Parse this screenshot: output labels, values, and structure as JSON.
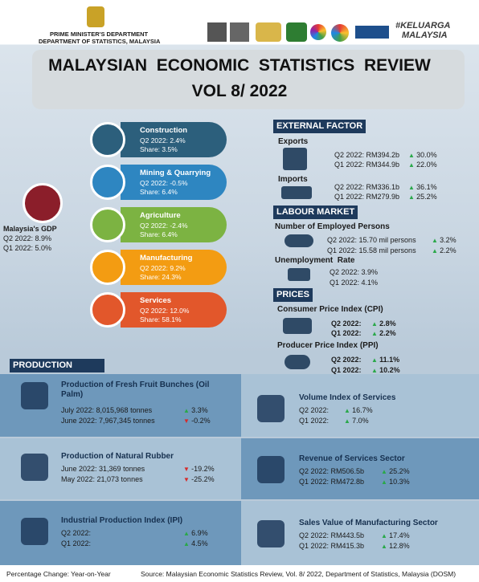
{
  "header": {
    "department": [
      "PRIME MINISTER'S DEPARTMENT",
      "DEPARTMENT OF STATISTICS, MALAYSIA"
    ],
    "hashtag": [
      "#KELUARGA",
      "MALAYSIA"
    ],
    "title": [
      "MALAYSIAN  ECONOMIC  STATISTICS  REVIEW",
      "VOL 8/ 2022"
    ]
  },
  "gdp": {
    "label": "Malaysia's GDP",
    "rows": [
      "Q2 2022: 8.9%",
      "Q1 2022: 5.0%"
    ]
  },
  "sectors": [
    {
      "name": "Construction",
      "change": "Q2 2022: 2.4%",
      "share": "Share: 3.5%"
    },
    {
      "name": "Mining & Quarrying",
      "change": "Q2 2022: -0.5%",
      "share": "Share: 6.4%"
    },
    {
      "name": "Agriculture",
      "change": "Q2 2022: -2.4%",
      "share": "Share: 6.4%"
    },
    {
      "name": "Manufacturing",
      "change": "Q2 2022: 9.2%",
      "share": "Share: 24.3%"
    },
    {
      "name": "Services",
      "change": "Q2 2022: 12.0%",
      "share": "Share: 58.1%"
    }
  ],
  "external": {
    "title": "EXTERNAL FACTOR",
    "groups": [
      {
        "name": "Exports",
        "rows": [
          {
            "text": "Q2 2022: RM394.2b",
            "change": "30.0%"
          },
          {
            "text": "Q1 2022: RM344.9b",
            "change": "22.0%"
          }
        ]
      },
      {
        "name": "Imports",
        "rows": [
          {
            "text": "Q2 2022: RM336.1b",
            "change": "36.1%"
          },
          {
            "text": "Q1 2022: RM279.9b",
            "change": "25.2%"
          }
        ]
      }
    ]
  },
  "labour": {
    "title": "LABOUR MARKET",
    "employed": {
      "name": "Number of Employed Persons",
      "rows": [
        {
          "text": "Q2 2022: 15.70 mil persons",
          "change": "3.2%"
        },
        {
          "text": "Q1 2022: 15.58 mil persons",
          "change": "2.2%"
        }
      ]
    },
    "unemployment": {
      "name": "Unemployment  Rate",
      "rows": [
        "Q2 2022: 3.9%",
        "Q1 2022: 4.1%"
      ]
    }
  },
  "prices": {
    "title": "PRICES",
    "groups": [
      {
        "name": "Consumer Price Index (CPI)",
        "rows": [
          {
            "text": "Q2 2022:",
            "change": "2.8%"
          },
          {
            "text": "Q1 2022:",
            "change": "2.2%"
          }
        ]
      },
      {
        "name": "Producer Price Index (PPI)",
        "rows": [
          {
            "text": "Q2 2022:",
            "change": "11.1%"
          },
          {
            "text": "Q1 2022:",
            "change": "10.2%"
          }
        ]
      }
    ]
  },
  "production": {
    "title": "PRODUCTION",
    "items": [
      {
        "title": "Production of Fresh Fruit Bunches (Oil Palm)",
        "rows": [
          {
            "text": "July 2022: 8,015,968 tonnes",
            "change": "3.3%"
          },
          {
            "text": "June 2022: 7,967,345 tonnes",
            "change": "-0.2%"
          }
        ]
      },
      {
        "title": "Production of Natural Rubber",
        "rows": [
          {
            "text": "June 2022: 31,369 tonnes",
            "change": "-19.2%"
          },
          {
            "text": "May 2022: 21,073 tonnes",
            "change": "-25.2%"
          }
        ]
      },
      {
        "title": "Industrial Production Index (IPI)",
        "rows": [
          {
            "text": "Q2 2022:",
            "change": "6.9%"
          },
          {
            "text": "Q1 2022:",
            "change": "4.5%"
          }
        ]
      },
      {
        "title": "Volume Index of Services",
        "rows": [
          {
            "text": "Q2 2022:",
            "change": "16.7%"
          },
          {
            "text": "Q1 2022:",
            "change": "7.0%"
          }
        ]
      },
      {
        "title": "Revenue of Services Sector",
        "rows": [
          {
            "text": "Q2 2022: RM506.5b",
            "change": "25.2%"
          },
          {
            "text": "Q1 2022: RM472.8b",
            "change": "10.3%"
          }
        ]
      },
      {
        "title": "Sales Value of Manufacturing Sector",
        "rows": [
          {
            "text": "Q2 2022: RM443.5b",
            "change": "17.4%"
          },
          {
            "text": "Q1 2022: RM415.3b",
            "change": "12.8%"
          }
        ]
      }
    ]
  },
  "footer": {
    "note": "Percentage Change: Year-on-Year",
    "source": "Source: Malaysian Economic Statistics Review, Vol. 8/ 2022, Department of Statistics, Malaysia (DOSM)"
  }
}
